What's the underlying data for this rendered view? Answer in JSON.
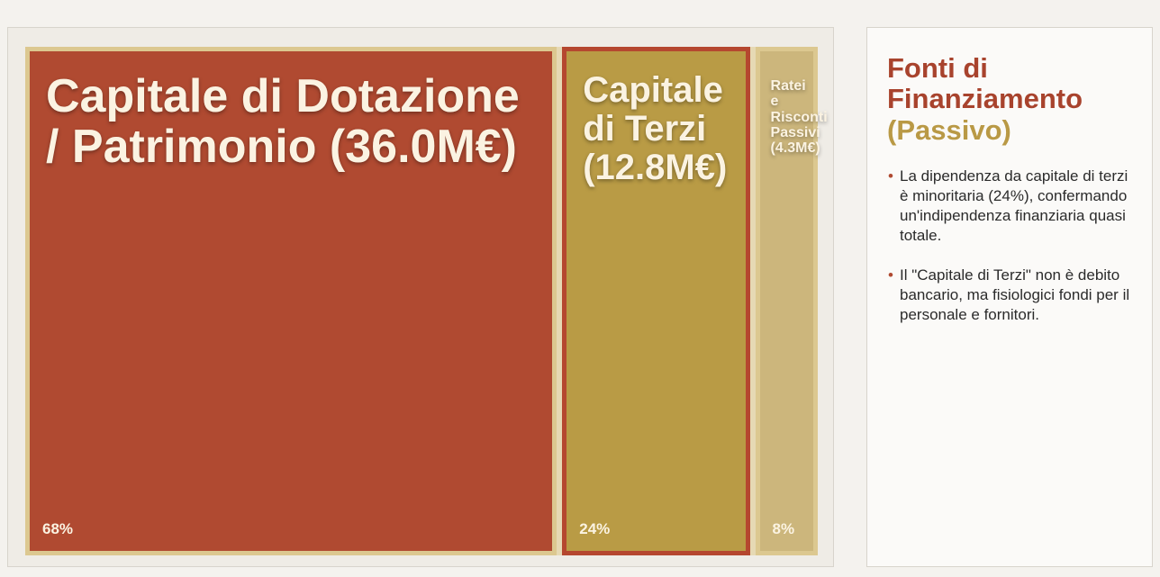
{
  "chart_data": {
    "type": "treemap",
    "categories": [
      "Capitale di Dotazione / Patrimonio (36.0M€)",
      "Capitale di Terzi (12.8M€)",
      "Ratei e Risconti Passivi (4.3M€)"
    ],
    "values": [
      68,
      24,
      8
    ],
    "value_labels": [
      "68%",
      "24%",
      "8%"
    ],
    "colors": [
      "#b04a31",
      "#b99b45",
      "#ccb67c"
    ]
  },
  "panel": {
    "title": "Fonti di Finanziamento",
    "subtitle": "(Passivo)",
    "bullets": [
      "La dipendenza da capitale di terzi è minoritaria (24%), confermando un'indipendenza finanziaria quasi totale.",
      "Il \"Capitale di Terzi\" non è debito bancario, ma fisiologici fondi per il personale e fornitori."
    ]
  }
}
